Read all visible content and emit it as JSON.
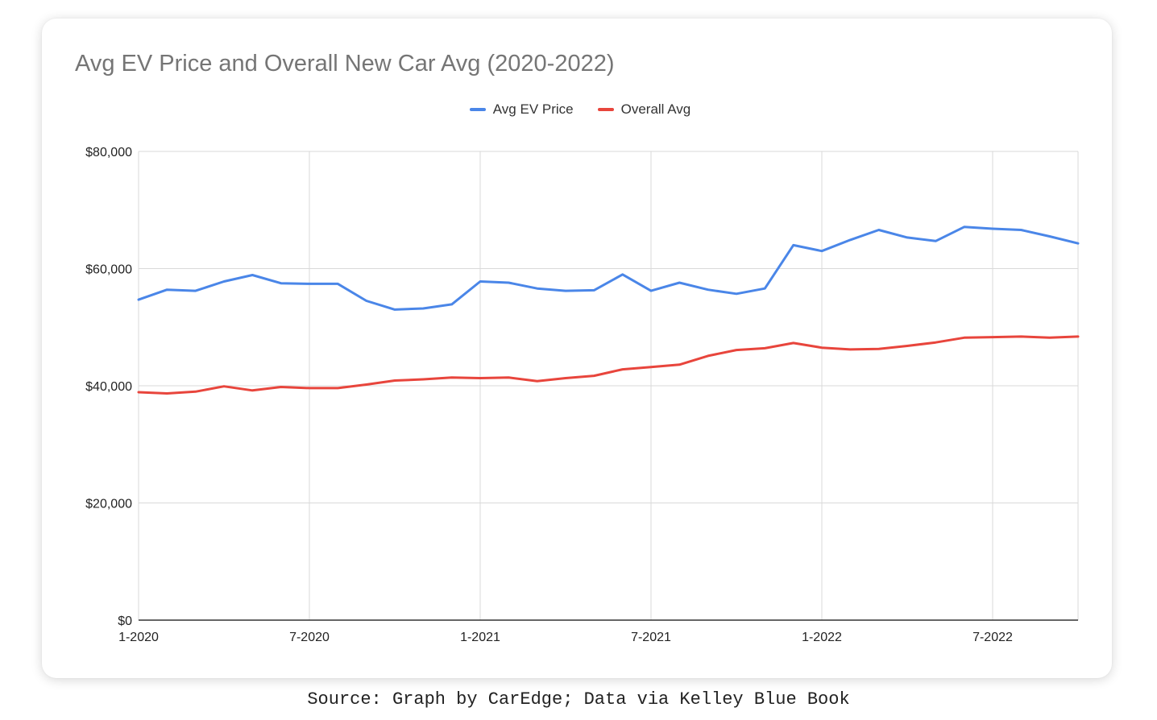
{
  "caption": "Source: Graph by CarEdge; Data via Kelley Blue Book",
  "chart_data": {
    "type": "line",
    "title": "Avg EV Price and Overall New Car Avg (2020-2022)",
    "xlabel": "",
    "ylabel": "",
    "legend_position": "top-center",
    "grid": true,
    "ylim": [
      0,
      80000
    ],
    "yticks": [
      0,
      20000,
      40000,
      60000,
      80000
    ],
    "ytick_labels": [
      "$0",
      "$20,000",
      "$40,000",
      "$60,000",
      "$80,000"
    ],
    "xtick_labels": [
      {
        "index": 0,
        "label": "1-2020"
      },
      {
        "index": 6,
        "label": "7-2020"
      },
      {
        "index": 12,
        "label": "1-2021"
      },
      {
        "index": 18,
        "label": "7-2021"
      },
      {
        "index": 24,
        "label": "1-2022"
      },
      {
        "index": 30,
        "label": "7-2022"
      }
    ],
    "x": [
      "1-2020",
      "2-2020",
      "3-2020",
      "4-2020",
      "5-2020",
      "6-2020",
      "7-2020",
      "8-2020",
      "9-2020",
      "10-2020",
      "11-2020",
      "12-2020",
      "1-2021",
      "2-2021",
      "3-2021",
      "4-2021",
      "5-2021",
      "6-2021",
      "7-2021",
      "8-2021",
      "9-2021",
      "10-2021",
      "11-2021",
      "12-2021",
      "1-2022",
      "2-2022",
      "3-2022",
      "4-2022",
      "5-2022",
      "6-2022",
      "7-2022",
      "8-2022",
      "9-2022",
      "10-2022"
    ],
    "series": [
      {
        "name": "Avg EV Price",
        "color": "#4a86e8",
        "values": [
          54700,
          56400,
          56200,
          57800,
          58900,
          57500,
          57400,
          57400,
          54500,
          53000,
          53200,
          53900,
          57800,
          57600,
          56600,
          56200,
          56300,
          59000,
          56200,
          57600,
          56400,
          55700,
          56600,
          64000,
          63000,
          64900,
          66600,
          65300,
          64700,
          67100,
          66800,
          66600,
          65500,
          64300
        ]
      },
      {
        "name": "Overall Avg",
        "color": "#e8453c",
        "values": [
          38900,
          38700,
          39000,
          39900,
          39200,
          39800,
          39600,
          39600,
          40200,
          40900,
          41100,
          41400,
          41300,
          41400,
          40800,
          41300,
          41700,
          42800,
          43200,
          43600,
          45100,
          46100,
          46400,
          47300,
          46500,
          46200,
          46300,
          46800,
          47400,
          48200,
          48300,
          48400,
          48200,
          48400
        ]
      }
    ]
  }
}
